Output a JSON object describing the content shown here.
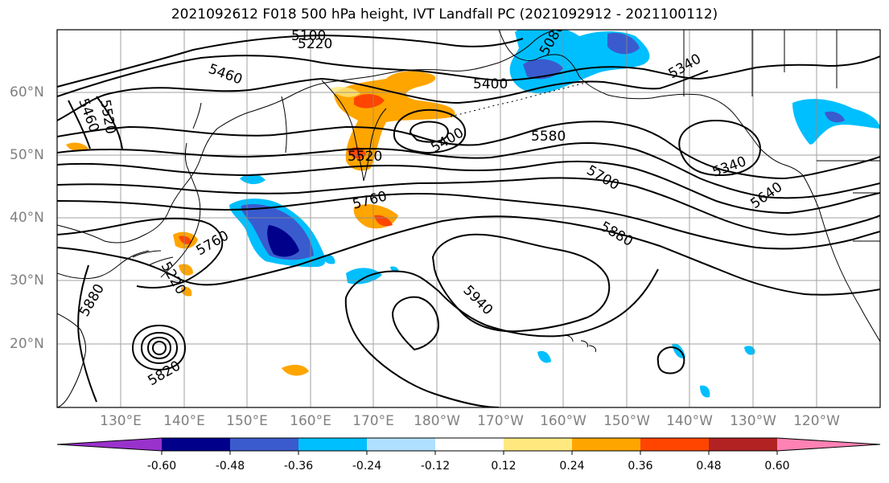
{
  "title": "2021092612 F018 500 hPa height, IVT Landfall PC (2021092912 - 2021100112)",
  "lat_labels": [
    "60°N",
    "50°N",
    "40°N",
    "30°N",
    "20°N"
  ],
  "lon_labels": [
    "130°E",
    "140°E",
    "150°E",
    "160°E",
    "170°E",
    "180°W",
    "170°W",
    "160°W",
    "150°W",
    "140°W",
    "130°W",
    "120°W"
  ],
  "contour_labels": [
    "5100",
    "5220",
    "5460",
    "5460",
    "5520",
    "5400",
    "5340",
    "5580",
    "5520",
    "5400",
    "5760",
    "5700",
    "5340",
    "5640",
    "5760",
    "5880",
    "5880",
    "5940",
    "5820",
    "5220",
    "5080"
  ],
  "colorbar": {
    "ticks": [
      "-0.60",
      "-0.48",
      "-0.36",
      "-0.24",
      "-0.12",
      "0.12",
      "0.24",
      "0.36",
      "0.48",
      "0.60"
    ],
    "colors": [
      "#9932cc",
      "#00008b",
      "#3a5bcd",
      "#00bfff",
      "#b0e0ff",
      "#ffffff",
      "#ffe97f",
      "#ffa500",
      "#ff4500",
      "#b22222",
      "#ff82b4"
    ]
  }
}
